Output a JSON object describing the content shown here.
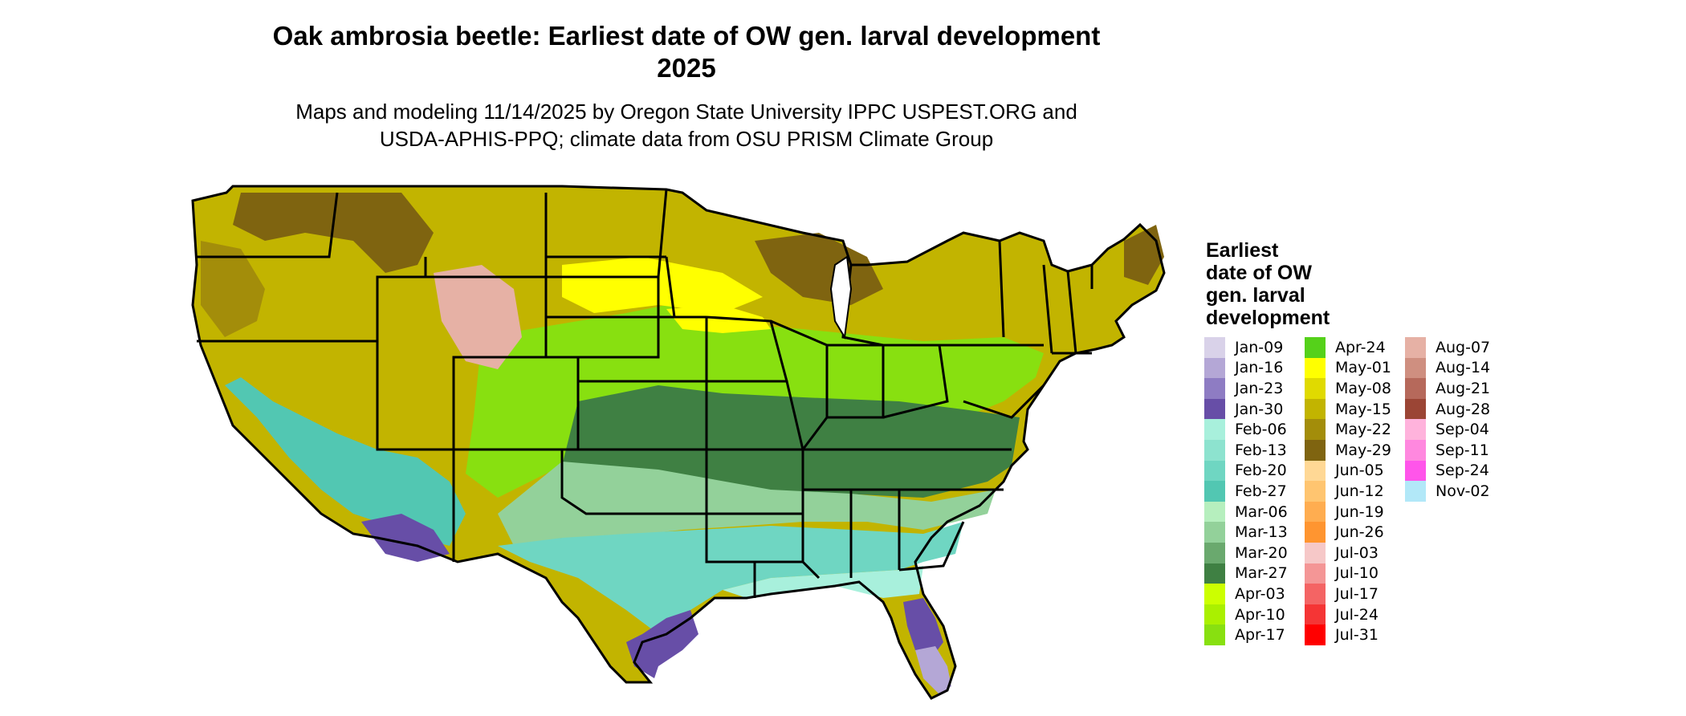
{
  "title_line1": "Oak ambrosia beetle: Earliest date of OW gen. larval development",
  "title_line2": "2025",
  "subtitle_line1": "Maps and modeling 11/14/2025 by Oregon State University IPPC USPEST.ORG and",
  "subtitle_line2": "USDA-APHIS-PPQ; climate data from OSU PRISM Climate Group",
  "legend": {
    "title_lines": [
      "Earliest",
      "date of OW",
      "gen. larval",
      "development"
    ],
    "columns": [
      [
        {
          "label": "Jan-09",
          "color": "#d9d2e9"
        },
        {
          "label": "Jan-16",
          "color": "#b4a7d6"
        },
        {
          "label": "Jan-23",
          "color": "#8e7cc3"
        },
        {
          "label": "Jan-30",
          "color": "#674ea7"
        },
        {
          "label": "Feb-06",
          "color": "#a8f0dc"
        },
        {
          "label": "Feb-13",
          "color": "#8de3cf"
        },
        {
          "label": "Feb-20",
          "color": "#6fd6c2"
        },
        {
          "label": "Feb-27",
          "color": "#52c7b2"
        },
        {
          "label": "Mar-06",
          "color": "#b6efbe"
        },
        {
          "label": "Mar-13",
          "color": "#93d19a"
        },
        {
          "label": "Mar-20",
          "color": "#6aa96e"
        },
        {
          "label": "Mar-27",
          "color": "#3f8043"
        },
        {
          "label": "Apr-03",
          "color": "#ccff00"
        },
        {
          "label": "Apr-10",
          "color": "#aaf000"
        },
        {
          "label": "Apr-17",
          "color": "#88e010"
        }
      ],
      [
        {
          "label": "Apr-24",
          "color": "#55d11a"
        },
        {
          "label": "May-01",
          "color": "#ffff00"
        },
        {
          "label": "May-08",
          "color": "#e0da00"
        },
        {
          "label": "May-15",
          "color": "#c2b400"
        },
        {
          "label": "May-22",
          "color": "#a38d0a"
        },
        {
          "label": "May-29",
          "color": "#7f6410"
        },
        {
          "label": "Jun-05",
          "color": "#ffd895"
        },
        {
          "label": "Jun-12",
          "color": "#ffc570"
        },
        {
          "label": "Jun-19",
          "color": "#ffad50"
        },
        {
          "label": "Jun-26",
          "color": "#ff9530"
        },
        {
          "label": "Jul-03",
          "color": "#f6c8c8"
        },
        {
          "label": "Jul-10",
          "color": "#f49696"
        },
        {
          "label": "Jul-17",
          "color": "#f46464"
        },
        {
          "label": "Jul-24",
          "color": "#f53535"
        },
        {
          "label": "Jul-31",
          "color": "#ff0000"
        }
      ],
      [
        {
          "label": "Aug-07",
          "color": "#e6b1a5"
        },
        {
          "label": "Aug-14",
          "color": "#cf8f80"
        },
        {
          "label": "Aug-21",
          "color": "#b6695b"
        },
        {
          "label": "Aug-28",
          "color": "#9b4535"
        },
        {
          "label": "Sep-04",
          "color": "#ffb3dc"
        },
        {
          "label": "Sep-11",
          "color": "#ff88df"
        },
        {
          "label": "Sep-24",
          "color": "#ff55ea"
        },
        {
          "label": "Nov-02",
          "color": "#b2e8f8"
        }
      ]
    ]
  }
}
